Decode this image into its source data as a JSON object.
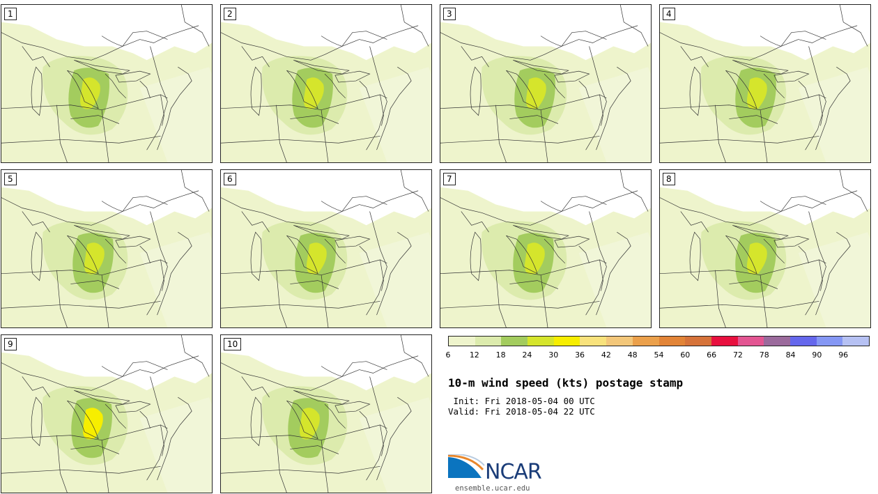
{
  "panels": [
    {
      "label": "1",
      "variant": 0
    },
    {
      "label": "2",
      "variant": 1
    },
    {
      "label": "3",
      "variant": 2
    },
    {
      "label": "4",
      "variant": 3
    },
    {
      "label": "5",
      "variant": 1
    },
    {
      "label": "6",
      "variant": 2
    },
    {
      "label": "7",
      "variant": 4
    },
    {
      "label": "8",
      "variant": 3
    },
    {
      "label": "9",
      "variant": 5
    },
    {
      "label": "10",
      "variant": 0
    }
  ],
  "colorbar": {
    "colors": [
      "#eef4cc",
      "#dcebad",
      "#a3cc5e",
      "#d5e52c",
      "#f7ee00",
      "#f8e27c",
      "#f3c77a",
      "#eba04b",
      "#e28437",
      "#d6733a",
      "#e8103f",
      "#e35592",
      "#9b6a9c",
      "#6567ec",
      "#8597f4",
      "#b6c1f3"
    ],
    "ticks": [
      "6",
      "12",
      "18",
      "24",
      "30",
      "36",
      "42",
      "48",
      "54",
      "60",
      "66",
      "72",
      "78",
      "84",
      "90",
      "96"
    ]
  },
  "title": "10-m wind speed (kts) postage stamp",
  "init": " Init: Fri 2018-05-04 00 UTC",
  "valid": "Valid: Fri 2018-05-04 22 UTC",
  "logo": {
    "text": "NCAR",
    "website": "ensemble.ucar.edu"
  }
}
